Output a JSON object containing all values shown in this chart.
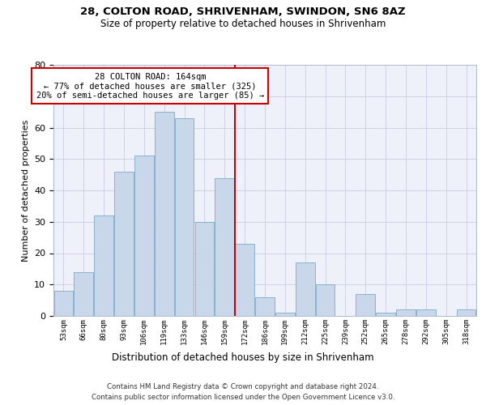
{
  "title_line1": "28, COLTON ROAD, SHRIVENHAM, SWINDON, SN6 8AZ",
  "title_line2": "Size of property relative to detached houses in Shrivenham",
  "xlabel": "Distribution of detached houses by size in Shrivenham",
  "ylabel": "Number of detached properties",
  "bin_labels": [
    "53sqm",
    "66sqm",
    "80sqm",
    "93sqm",
    "106sqm",
    "119sqm",
    "133sqm",
    "146sqm",
    "159sqm",
    "172sqm",
    "186sqm",
    "199sqm",
    "212sqm",
    "225sqm",
    "239sqm",
    "252sqm",
    "265sqm",
    "278sqm",
    "292sqm",
    "305sqm",
    "318sqm"
  ],
  "bar_heights": [
    8,
    14,
    32,
    46,
    51,
    65,
    63,
    30,
    44,
    23,
    6,
    1,
    17,
    10,
    0,
    7,
    1,
    2,
    2,
    0,
    2
  ],
  "bar_color": "#c8d8ea",
  "bar_edge_color": "#7aaac8",
  "annotation_line1": "28 COLTON ROAD: 164sqm",
  "annotation_line2": "← 77% of detached houses are smaller (325)",
  "annotation_line3": "20% of semi-detached houses are larger (85) →",
  "annotation_box_color": "#ffffff",
  "annotation_box_edge": "#cc0000",
  "vline_color": "#cc0000",
  "ylim": [
    0,
    80
  ],
  "yticks": [
    0,
    10,
    20,
    30,
    40,
    50,
    60,
    70,
    80
  ],
  "footnote1": "Contains HM Land Registry data © Crown copyright and database right 2024.",
  "footnote2": "Contains public sector information licensed under the Open Government Licence v3.0.",
  "bg_color": "#eef1fa"
}
